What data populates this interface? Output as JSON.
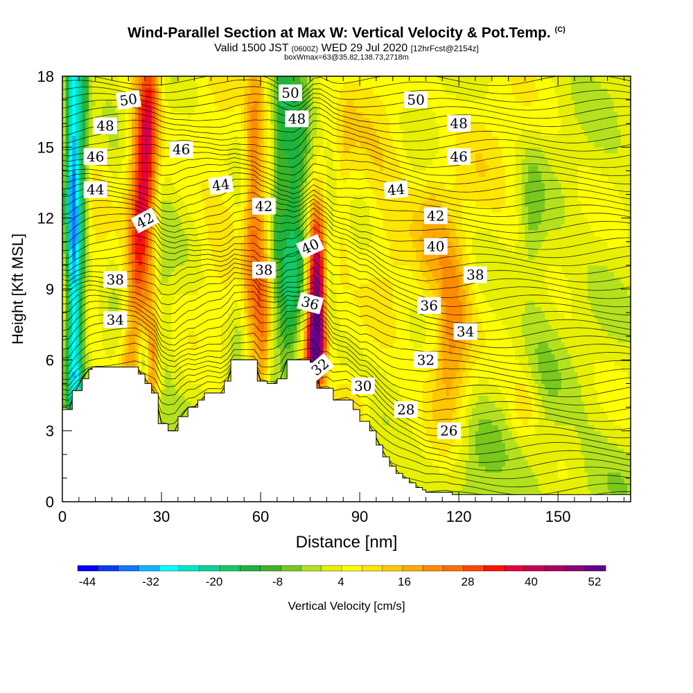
{
  "title": "Wind-Parallel Section at Max W: Vertical Velocity & Pot.Temp.",
  "title_mark": "(C)",
  "subtitle_prefix": "Valid 1500 JST",
  "subtitle_utc": "(0600Z)",
  "subtitle_date": "WED 29 Jul 2020",
  "subtitle_fcst": "[12hrFcst@2154z]",
  "subtitle2": "boxWmax=63@35.82,138.73,2718m",
  "chart_data": {
    "type": "heatmap",
    "xlabel": "Distance [nm]",
    "ylabel": "Height [Kft MSL]",
    "xlim": [
      0,
      172
    ],
    "ylim": [
      0,
      18
    ],
    "x_ticks": [
      0,
      30,
      60,
      90,
      120,
      150
    ],
    "y_ticks": [
      0,
      3,
      6,
      9,
      12,
      15,
      18
    ],
    "colorbar": {
      "label": "Vertical Velocity [cm/s]",
      "tick_labels": [
        "-44",
        "-32",
        "-20",
        "-8",
        "4",
        "16",
        "28",
        "40",
        "52"
      ],
      "min": -50,
      "max": 58,
      "colors": [
        "#0000ff",
        "#0a3cf0",
        "#0f78ff",
        "#0fb4ff",
        "#00ffff",
        "#00e6c8",
        "#0ad296",
        "#14c864",
        "#1eb43c",
        "#3cb428",
        "#78c81e",
        "#b4e11e",
        "#e6f000",
        "#ffff00",
        "#ffe600",
        "#ffc800",
        "#ffaa00",
        "#ff8c00",
        "#ff6e00",
        "#ff4600",
        "#ff1400",
        "#e6003c",
        "#c80050",
        "#aa0064",
        "#8c0078",
        "#64008c"
      ]
    },
    "terrain_kft": [
      [
        0,
        3.9
      ],
      [
        3,
        3.9
      ],
      [
        3,
        4.7
      ],
      [
        6,
        4.7
      ],
      [
        6,
        5.2
      ],
      [
        8,
        5.2
      ],
      [
        8,
        5.6
      ],
      [
        9,
        5.6
      ],
      [
        9,
        5.7
      ],
      [
        20,
        5.7
      ],
      [
        23,
        5.7
      ],
      [
        23,
        5.4
      ],
      [
        25,
        5.4
      ],
      [
        25,
        5.0
      ],
      [
        27,
        5.0
      ],
      [
        27,
        4.6
      ],
      [
        29,
        4.6
      ],
      [
        29,
        3.3
      ],
      [
        32,
        3.3
      ],
      [
        32,
        3.0
      ],
      [
        35,
        3.0
      ],
      [
        35,
        3.6
      ],
      [
        38,
        3.6
      ],
      [
        38,
        4.0
      ],
      [
        41,
        4.0
      ],
      [
        41,
        4.3
      ],
      [
        43,
        4.3
      ],
      [
        43,
        4.6
      ],
      [
        49,
        4.6
      ],
      [
        49,
        5.1
      ],
      [
        51,
        5.1
      ],
      [
        51,
        6.0
      ],
      [
        59,
        6.0
      ],
      [
        59,
        5.1
      ],
      [
        62,
        5.1
      ],
      [
        62,
        5.0
      ],
      [
        65,
        5.0
      ],
      [
        65,
        5.2
      ],
      [
        68,
        5.2
      ],
      [
        68,
        6.0
      ],
      [
        75,
        6.0
      ],
      [
        75,
        5.9
      ],
      [
        77,
        5.9
      ],
      [
        77,
        4.8
      ],
      [
        82,
        4.8
      ],
      [
        82,
        4.3
      ],
      [
        88,
        4.3
      ],
      [
        88,
        3.9
      ],
      [
        90,
        3.9
      ],
      [
        90,
        3.4
      ],
      [
        93,
        3.4
      ],
      [
        93,
        3.0
      ],
      [
        95,
        3.0
      ],
      [
        95,
        2.4
      ],
      [
        97,
        2.4
      ],
      [
        97,
        1.9
      ],
      [
        99,
        1.9
      ],
      [
        99,
        1.5
      ],
      [
        101,
        1.5
      ],
      [
        101,
        1.2
      ],
      [
        103,
        1.2
      ],
      [
        103,
        1.0
      ],
      [
        105,
        1.0
      ],
      [
        105,
        0.8
      ],
      [
        107,
        0.8
      ],
      [
        107,
        0.6
      ],
      [
        109,
        0.6
      ],
      [
        109,
        0.5
      ],
      [
        110,
        0.5
      ],
      [
        110,
        0.4
      ],
      [
        118,
        0.4
      ],
      [
        118,
        0.3
      ],
      [
        172,
        0.3
      ]
    ],
    "updrafts": [
      {
        "x": 77,
        "y": 8.8,
        "sx": 2.0,
        "sy": 2.4,
        "w": 58
      },
      {
        "x": 77,
        "y": 6.4,
        "sx": 2.5,
        "sy": 1.2,
        "w": 32
      },
      {
        "x": 25,
        "y": 14.0,
        "sx": 3.5,
        "sy": 4.5,
        "w": 24
      },
      {
        "x": 27,
        "y": 6.0,
        "sx": 2.0,
        "sy": 1.6,
        "w": 22
      },
      {
        "x": 58,
        "y": 12.5,
        "sx": 3.5,
        "sy": 4.5,
        "w": 12
      },
      {
        "x": 61,
        "y": 7.0,
        "sx": 2.0,
        "sy": 2.5,
        "w": 20
      },
      {
        "x": 83,
        "y": 14.5,
        "sx": 3.0,
        "sy": 4.0,
        "w": 12
      },
      {
        "x": 117,
        "y": 7.5,
        "sx": 4.5,
        "sy": 3.0,
        "w": 24
      },
      {
        "x": 112,
        "y": 11.0,
        "sx": 3.0,
        "sy": 2.0,
        "w": 12
      },
      {
        "x": 10,
        "y": 12.0,
        "sx": 3.0,
        "sy": 4.0,
        "w": 6
      },
      {
        "x": 48,
        "y": 13.0,
        "sx": 7.0,
        "sy": 5.0,
        "w": 7
      },
      {
        "x": 100,
        "y": 10.0,
        "sx": 6.0,
        "sy": 4.0,
        "w": 6
      },
      {
        "x": 130,
        "y": 15.0,
        "sx": 9.0,
        "sy": 4.0,
        "w": 6
      },
      {
        "x": 95,
        "y": 15.5,
        "sx": 7.0,
        "sy": 3.0,
        "w": 7
      },
      {
        "x": 140,
        "y": 4.0,
        "sx": 3.0,
        "sy": 1.0,
        "w": 10
      },
      {
        "x": 88,
        "y": 4.0,
        "sx": 4.0,
        "sy": 1.0,
        "w": 12
      }
    ],
    "downdrafts": [
      {
        "x": 3,
        "y": 13.0,
        "sx": 1.4,
        "sy": 7.0,
        "w": -34
      },
      {
        "x": 70,
        "y": 13.0,
        "sx": 3.5,
        "sy": 4.0,
        "w": -20
      },
      {
        "x": 68,
        "y": 7.5,
        "sx": 2.0,
        "sy": 2.0,
        "w": -10
      },
      {
        "x": 30,
        "y": 10.0,
        "sx": 2.0,
        "sy": 6.0,
        "w": -8
      },
      {
        "x": 25,
        "y": 6.0,
        "sx": 1.2,
        "sy": 0.8,
        "w": -20
      },
      {
        "x": 54,
        "y": 10.0,
        "sx": 2.0,
        "sy": 6.0,
        "w": -8
      },
      {
        "x": 113,
        "y": 9.0,
        "sx": 2.5,
        "sy": 2.0,
        "w": -10
      },
      {
        "x": 145,
        "y": 6.0,
        "sx": 4.0,
        "sy": 4.0,
        "w": -4
      },
      {
        "x": 125,
        "y": 2.0,
        "sx": 6.0,
        "sy": 2.0,
        "w": -6
      },
      {
        "x": 160,
        "y": 1.0,
        "sx": 8.0,
        "sy": 1.5,
        "w": -4
      },
      {
        "x": 142,
        "y": 12.0,
        "sx": 2.5,
        "sy": 2.0,
        "w": -8
      }
    ],
    "theta_labels": [
      {
        "text": "50",
        "x": 20,
        "y": 17.0,
        "rot": -8
      },
      {
        "text": "50",
        "x": 69,
        "y": 17.3,
        "rot": 0
      },
      {
        "text": "50",
        "x": 107,
        "y": 17.0,
        "rot": 0
      },
      {
        "text": "48",
        "x": 13,
        "y": 15.9,
        "rot": 0
      },
      {
        "text": "48",
        "x": 71,
        "y": 16.2,
        "rot": 0
      },
      {
        "text": "48",
        "x": 120,
        "y": 16.0,
        "rot": 0
      },
      {
        "text": "46",
        "x": 10,
        "y": 14.6,
        "rot": 0
      },
      {
        "text": "46",
        "x": 36,
        "y": 14.9,
        "rot": 0
      },
      {
        "text": "46",
        "x": 120,
        "y": 14.6,
        "rot": 0
      },
      {
        "text": "44",
        "x": 10,
        "y": 13.2,
        "rot": 0
      },
      {
        "text": "44",
        "x": 48,
        "y": 13.4,
        "rot": -8
      },
      {
        "text": "44",
        "x": 101,
        "y": 13.2,
        "rot": -5
      },
      {
        "text": "42",
        "x": 25,
        "y": 11.9,
        "rot": -28
      },
      {
        "text": "42",
        "x": 61,
        "y": 12.5,
        "rot": 0
      },
      {
        "text": "42",
        "x": 113,
        "y": 12.1,
        "rot": 0
      },
      {
        "text": "40",
        "x": 75,
        "y": 10.8,
        "rot": -25
      },
      {
        "text": "40",
        "x": 113,
        "y": 10.8,
        "rot": 0
      },
      {
        "text": "38",
        "x": 16,
        "y": 9.4,
        "rot": 0
      },
      {
        "text": "38",
        "x": 61,
        "y": 9.8,
        "rot": 0
      },
      {
        "text": "38",
        "x": 125,
        "y": 9.6,
        "rot": 0
      },
      {
        "text": "36",
        "x": 75,
        "y": 8.4,
        "rot": 15
      },
      {
        "text": "36",
        "x": 111,
        "y": 8.3,
        "rot": 0
      },
      {
        "text": "34",
        "x": 16,
        "y": 7.7,
        "rot": 0
      },
      {
        "text": "34",
        "x": 122,
        "y": 7.2,
        "rot": 0
      },
      {
        "text": "32",
        "x": 78,
        "y": 5.7,
        "rot": -40
      },
      {
        "text": "32",
        "x": 110,
        "y": 6.0,
        "rot": 0
      },
      {
        "text": "30",
        "x": 91,
        "y": 4.9,
        "rot": 0
      },
      {
        "text": "28",
        "x": 104,
        "y": 3.9,
        "rot": 0
      },
      {
        "text": "26",
        "x": 117,
        "y": 3.0,
        "rot": 0
      }
    ]
  }
}
